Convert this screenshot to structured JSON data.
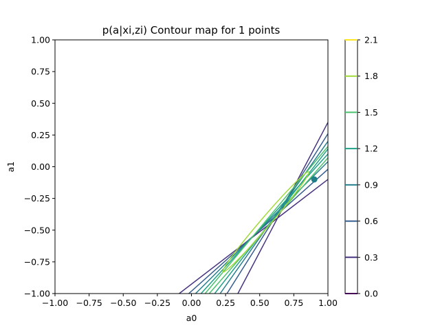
{
  "chart_data": {
    "type": "contour",
    "title": "p(a|xi,zi) Contour map for 1 points",
    "xlabel": "a0",
    "ylabel": "a1",
    "xlim": [
      -1.0,
      1.0
    ],
    "ylim": [
      -1.0,
      1.0
    ],
    "xticks": [
      "−1.00",
      "−0.75",
      "−0.50",
      "−0.25",
      "0.00",
      "0.25",
      "0.50",
      "0.75",
      "1.00"
    ],
    "yticks": [
      "−1.00",
      "−0.75",
      "−0.50",
      "−0.25",
      "0.00",
      "0.25",
      "0.50",
      "0.75",
      "1.00"
    ],
    "xtick_values": [
      -1.0,
      -0.75,
      -0.5,
      -0.25,
      0.0,
      0.25,
      0.5,
      0.75,
      1.0
    ],
    "ytick_values": [
      -1.0,
      -0.75,
      -0.5,
      -0.25,
      0.0,
      0.25,
      0.5,
      0.75,
      1.0
    ],
    "colorbar": {
      "levels": [
        0.0,
        0.3,
        0.6,
        0.9,
        1.2,
        1.5,
        1.8,
        2.1
      ],
      "labels": [
        "0.0",
        "0.3",
        "0.6",
        "0.9",
        "1.2",
        "1.5",
        "1.8",
        "2.1"
      ],
      "colors": [
        "#440154",
        "#46327e",
        "#365c8d",
        "#277f8e",
        "#1fa187",
        "#4ac16d",
        "#a0da39",
        "#fde725"
      ]
    },
    "contours": [
      {
        "level": 0.3,
        "color": "#46327e",
        "lower": [
          [
            -0.09,
            -1.0
          ],
          [
            1.0,
            -0.1
          ]
        ],
        "upper": [
          [
            0.34,
            -1.0
          ],
          [
            1.0,
            0.35
          ]
        ]
      },
      {
        "level": 0.6,
        "color": "#365c8d",
        "lower": [
          [
            -0.02,
            -1.0
          ],
          [
            1.0,
            -0.02
          ]
        ],
        "upper": [
          [
            0.26,
            -1.0
          ],
          [
            1.0,
            0.26
          ]
        ]
      },
      {
        "level": 0.9,
        "color": "#277f8e",
        "lower": [
          [
            0.03,
            -1.0
          ],
          [
            1.0,
            0.04
          ]
        ],
        "upper": [
          [
            0.21,
            -1.0
          ],
          [
            1.0,
            0.2
          ]
        ]
      },
      {
        "level": 1.2,
        "color": "#1fa187",
        "lower": [
          [
            0.07,
            -1.0
          ],
          [
            1.0,
            0.1
          ]
        ],
        "upper": [
          [
            0.17,
            -1.0
          ],
          [
            1.0,
            0.14
          ]
        ]
      },
      {
        "level": 1.5,
        "color": "#4ac16d",
        "lower": [
          [
            0.1,
            -1.0
          ],
          [
            1.0,
            0.16
          ]
        ],
        "upper": [
          [
            0.13,
            -1.0
          ],
          [
            1.0,
            0.07
          ]
        ]
      }
    ],
    "ellipse": {
      "level": 1.8,
      "color": "#a0da39",
      "center": [
        0.545,
        -0.44
      ],
      "tip_a": [
        0.23,
        -0.83
      ],
      "tip_b": [
        0.86,
        -0.04
      ],
      "half_width": 0.035
    },
    "points": [
      {
        "x": 0.9,
        "y": -0.1,
        "color": "#1f7e88"
      }
    ]
  }
}
